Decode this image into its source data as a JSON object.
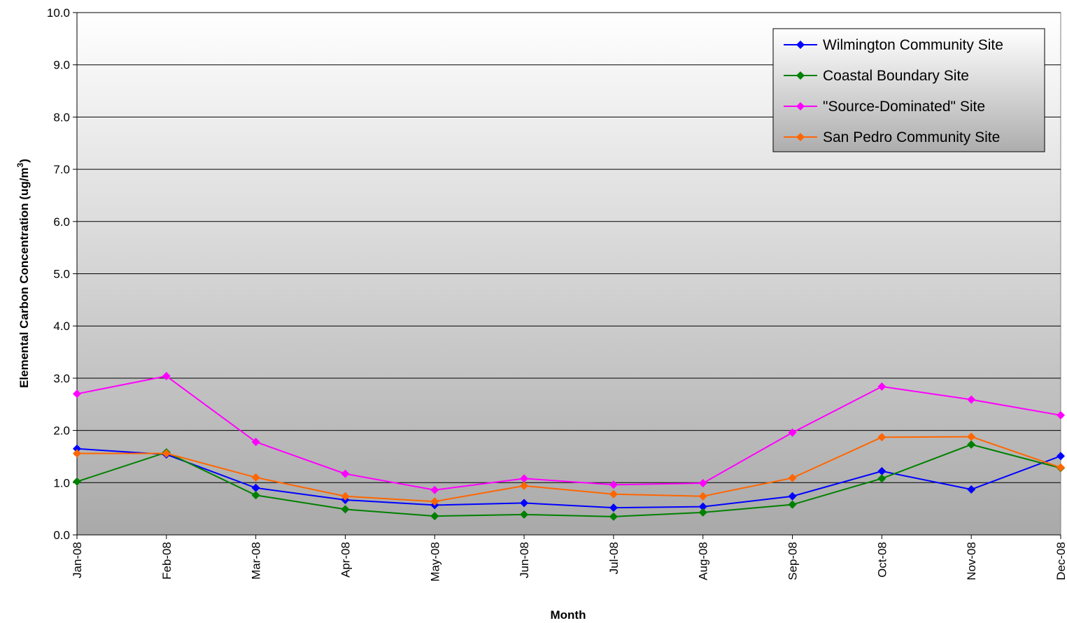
{
  "chart_data": {
    "type": "line",
    "title": "",
    "xlabel": "Month",
    "ylabel": "Elemental Carbon Concentration (ug/m",
    "ylabel_sup": "3",
    "ylabel_end": ")",
    "ylim": [
      0,
      10
    ],
    "ytick_step": 1,
    "yticks": [
      "0.0",
      "1.0",
      "2.0",
      "3.0",
      "4.0",
      "5.0",
      "6.0",
      "7.0",
      "8.0",
      "9.0",
      "10.0"
    ],
    "grid": true,
    "legend_position": "top-right",
    "categories": [
      "Jan-08",
      "Feb-08",
      "Mar-08",
      "Apr-08",
      "May-08",
      "Jun-08",
      "Jul-08",
      "Aug-08",
      "Sep-08",
      "Oct-08",
      "Nov-08",
      "Dec-08"
    ],
    "series": [
      {
        "name": "Wilmington Community Site",
        "color": "#0000ff",
        "values": [
          1.65,
          1.54,
          0.9,
          0.67,
          0.57,
          0.61,
          0.52,
          0.54,
          0.74,
          1.22,
          0.87,
          1.51
        ]
      },
      {
        "name": "Coastal Boundary Site",
        "color": "#008000",
        "values": [
          1.02,
          1.58,
          0.76,
          0.49,
          0.36,
          0.39,
          0.35,
          0.43,
          0.58,
          1.08,
          1.73,
          1.28
        ]
      },
      {
        "name": "\"Source-Dominated\" Site",
        "color": "#ff00ff",
        "values": [
          2.7,
          3.04,
          1.78,
          1.17,
          0.86,
          1.08,
          0.96,
          0.99,
          1.96,
          2.84,
          2.59,
          2.29
        ]
      },
      {
        "name": "San Pedro Community Site",
        "color": "#ff6600",
        "values": [
          1.56,
          1.56,
          1.1,
          0.74,
          0.64,
          0.94,
          0.78,
          0.74,
          1.09,
          1.87,
          1.88,
          1.29
        ]
      }
    ]
  }
}
